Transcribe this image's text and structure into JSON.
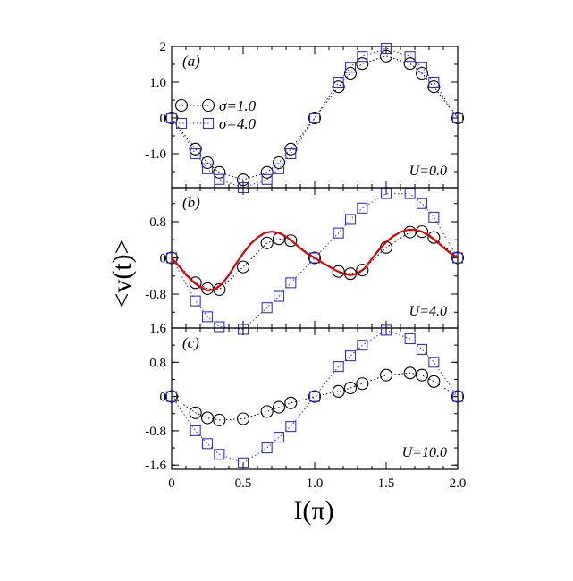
{
  "figure": {
    "xlabel": "I(π)",
    "ylabel": "<v(t)>"
  },
  "chart_data": [
    {
      "type": "line",
      "panel_tag": "(a)",
      "annotation": "U=0.0",
      "x_ticks": [
        "0",
        "0.5",
        "1.0",
        "1.5",
        "2.0"
      ],
      "y_ticks": [
        "2",
        "1.0",
        "0",
        "-1.0"
      ],
      "y_tick_values": [
        2,
        1,
        0,
        -1
      ],
      "xlim": [
        0,
        2
      ],
      "ylim": [
        -1.95,
        2.0
      ],
      "legend": {
        "position": "upper-left",
        "entries": [
          {
            "label": "σ=1.0",
            "marker": "circle",
            "color": "#000000"
          },
          {
            "label": "σ=4.0",
            "marker": "square",
            "color": "#3333cc"
          }
        ]
      },
      "series": [
        {
          "name": "σ=1.0",
          "marker": "circle",
          "color": "#000000",
          "line": "dotted",
          "x": [
            0,
            0.1667,
            0.25,
            0.3333,
            0.5,
            0.6667,
            0.75,
            0.8333,
            1.0,
            1.1667,
            1.25,
            1.3333,
            1.5,
            1.6667,
            1.75,
            1.8333,
            2.0
          ],
          "y": [
            0,
            -0.87,
            -1.25,
            -1.52,
            -1.73,
            -1.52,
            -1.25,
            -0.87,
            0,
            0.87,
            1.25,
            1.52,
            1.73,
            1.52,
            1.25,
            0.87,
            0
          ]
        },
        {
          "name": "σ=4.0",
          "marker": "square",
          "color": "#3333cc",
          "line": "dotted",
          "x": [
            0,
            0.1667,
            0.25,
            0.3333,
            0.5,
            0.6667,
            0.75,
            0.8333,
            1.0,
            1.1667,
            1.25,
            1.3333,
            1.5,
            1.6667,
            1.75,
            1.8333,
            2.0
          ],
          "y": [
            0,
            -1.0,
            -1.42,
            -1.72,
            -1.95,
            -1.72,
            -1.42,
            -1.0,
            0,
            1.0,
            1.42,
            1.72,
            1.95,
            1.72,
            1.42,
            1.0,
            0
          ]
        }
      ]
    },
    {
      "type": "line",
      "panel_tag": "(b)",
      "annotation": "U=4.0",
      "x_ticks": [
        "0",
        "0.5",
        "1.0",
        "1.5",
        "2.0"
      ],
      "y_ticks": [
        "0.8",
        "0",
        "-0.8"
      ],
      "y_tick_values": [
        0.8,
        0,
        -0.8
      ],
      "xlim": [
        0,
        2
      ],
      "ylim": [
        -1.55,
        1.55
      ],
      "series": [
        {
          "name": "σ=1.0",
          "marker": "circle",
          "color": "#000000",
          "line": "dotted",
          "x": [
            0,
            0.1667,
            0.25,
            0.3333,
            0.5,
            0.6667,
            0.75,
            0.8333,
            1.0,
            1.1667,
            1.25,
            1.3333,
            1.5,
            1.6667,
            1.75,
            1.8333,
            2.0
          ],
          "y": [
            0,
            -0.55,
            -0.68,
            -0.7,
            -0.2,
            0.33,
            0.42,
            0.38,
            0,
            -0.3,
            -0.35,
            -0.27,
            0.23,
            0.57,
            0.58,
            0.45,
            0
          ]
        },
        {
          "name": "σ=4.0",
          "marker": "square",
          "color": "#3333cc",
          "line": "dotted",
          "x": [
            0,
            0.1667,
            0.25,
            0.3333,
            0.5,
            0.6667,
            0.75,
            0.8333,
            1.0,
            1.1667,
            1.25,
            1.3333,
            1.5,
            1.6667,
            1.75,
            1.8333,
            2.0
          ],
          "y": [
            0,
            -0.95,
            -1.3,
            -1.52,
            -1.58,
            -1.1,
            -0.85,
            -0.55,
            0,
            0.55,
            0.85,
            1.1,
            1.42,
            1.42,
            1.2,
            0.9,
            0
          ]
        },
        {
          "name": "",
          "marker": "none",
          "color": "#dd0000",
          "line": "solid",
          "x": [
            0,
            0.05,
            0.1,
            0.15,
            0.2,
            0.25,
            0.3,
            0.35,
            0.4,
            0.45,
            0.5,
            0.55,
            0.6,
            0.65,
            0.7,
            0.75,
            0.8,
            0.85,
            0.9,
            0.95,
            1.0,
            1.05,
            1.1,
            1.15,
            1.2,
            1.25,
            1.3,
            1.35,
            1.4,
            1.45,
            1.5,
            1.55,
            1.6,
            1.65,
            1.7,
            1.75,
            1.8,
            1.85,
            1.9,
            1.95,
            2.0
          ],
          "y": [
            0,
            -0.18,
            -0.37,
            -0.53,
            -0.65,
            -0.72,
            -0.7,
            -0.58,
            -0.38,
            -0.13,
            0.1,
            0.3,
            0.45,
            0.55,
            0.58,
            0.55,
            0.47,
            0.35,
            0.21,
            0.09,
            0,
            -0.1,
            -0.19,
            -0.28,
            -0.35,
            -0.38,
            -0.35,
            -0.23,
            -0.02,
            0.18,
            0.35,
            0.48,
            0.57,
            0.62,
            0.62,
            0.58,
            0.49,
            0.37,
            0.23,
            0.1,
            0
          ]
        }
      ]
    },
    {
      "type": "line",
      "panel_tag": "(c)",
      "annotation": "U=10.0",
      "x_ticks": [
        "0",
        "0.5",
        "1.0",
        "1.5",
        "2.0"
      ],
      "y_ticks": [
        "1.6",
        "0.8",
        "0",
        "-0.8",
        "-1.6"
      ],
      "y_tick_values": [
        1.6,
        0.8,
        0,
        -0.8,
        -1.6
      ],
      "xlim": [
        0,
        2
      ],
      "ylim": [
        -1.7,
        1.6
      ],
      "series": [
        {
          "name": "σ=1.0",
          "marker": "circle",
          "color": "#000000",
          "line": "dotted",
          "x": [
            0,
            0.1667,
            0.25,
            0.3333,
            0.5,
            0.6667,
            0.75,
            0.8333,
            1.0,
            1.1667,
            1.25,
            1.3333,
            1.5,
            1.6667,
            1.75,
            1.8333,
            2.0
          ],
          "y": [
            0,
            -0.38,
            -0.5,
            -0.55,
            -0.52,
            -0.35,
            -0.25,
            -0.15,
            0,
            0.12,
            0.2,
            0.3,
            0.5,
            0.55,
            0.5,
            0.35,
            0
          ]
        },
        {
          "name": "σ=4.0",
          "marker": "square",
          "color": "#3333cc",
          "line": "dotted",
          "x": [
            0,
            0.1667,
            0.25,
            0.3333,
            0.5,
            0.6667,
            0.75,
            0.8333,
            1.0,
            1.1667,
            1.25,
            1.3333,
            1.5,
            1.6667,
            1.75,
            1.8333,
            2.0
          ],
          "y": [
            0,
            -0.8,
            -1.1,
            -1.35,
            -1.55,
            -1.2,
            -0.95,
            -0.7,
            0,
            0.7,
            0.95,
            1.2,
            1.55,
            1.35,
            1.1,
            0.8,
            0
          ]
        }
      ]
    }
  ]
}
